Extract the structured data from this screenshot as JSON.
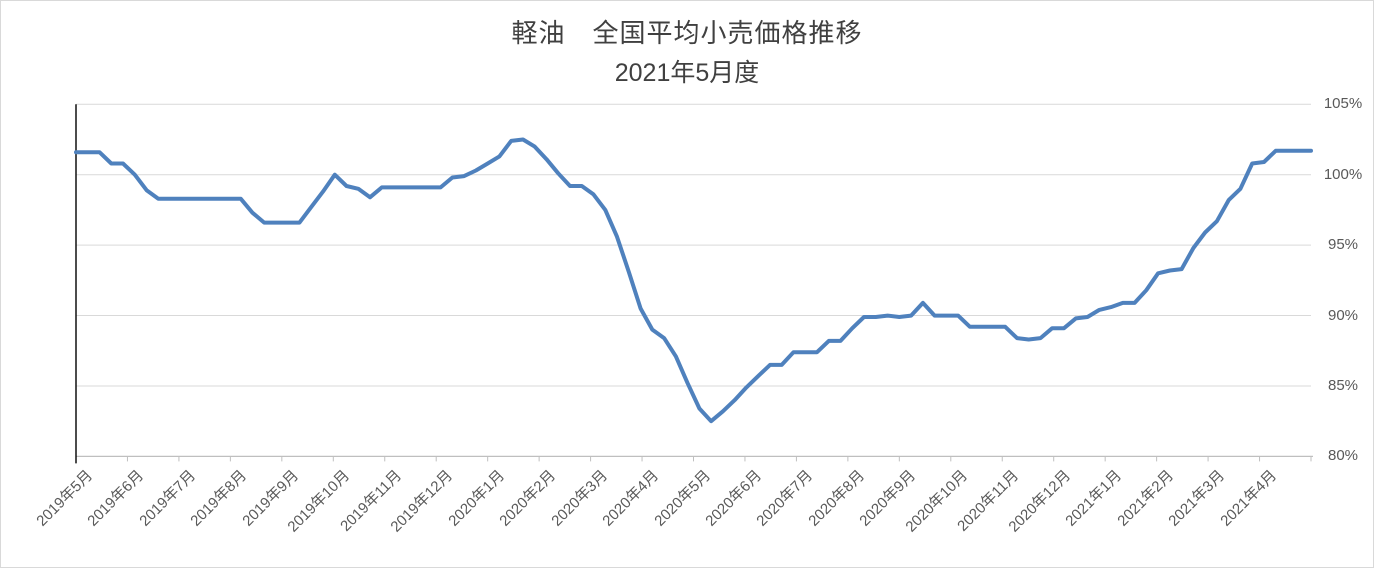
{
  "title": {
    "line1": "軽油　全国平均小売価格推移",
    "line2": "2021年5月度"
  },
  "chart_data": {
    "type": "line",
    "title": "軽油 全国平均小売価格推移",
    "subtitle": "2021年5月度",
    "frequency": "weekly",
    "legend": "none",
    "grid": "horizontal",
    "y_axis": {
      "min": 80,
      "max": 105,
      "step": 5,
      "format": "percent",
      "side": "right"
    },
    "y_tick_labels": [
      "105%",
      "100%",
      "95%",
      "90%",
      "85%",
      "80%"
    ],
    "x_tick_labels": [
      "2019年5月",
      "2019年6月",
      "2019年7月",
      "2019年8月",
      "2019年9月",
      "2019年10月",
      "2019年11月",
      "2019年12月",
      "2020年1月",
      "2020年2月",
      "2020年3月",
      "2020年4月",
      "2020年5月",
      "2020年6月",
      "2020年7月",
      "2020年8月",
      "2020年9月",
      "2020年10月",
      "2020年11月",
      "2020年12月",
      "2021年1月",
      "2021年2月",
      "2021年3月",
      "2021年4月"
    ],
    "values": [
      101.6,
      101.6,
      101.6,
      100.8,
      100.8,
      100.0,
      98.9,
      98.3,
      98.3,
      98.3,
      98.3,
      98.3,
      98.3,
      98.3,
      98.3,
      97.3,
      96.6,
      96.6,
      96.6,
      96.6,
      97.7,
      98.8,
      100.0,
      99.2,
      99.0,
      98.4,
      99.1,
      99.1,
      99.1,
      99.1,
      99.1,
      99.1,
      99.8,
      99.9,
      100.3,
      100.8,
      101.3,
      102.4,
      102.5,
      102.0,
      101.1,
      100.1,
      99.2,
      99.2,
      98.6,
      97.5,
      95.6,
      93.1,
      90.5,
      89.0,
      88.4,
      87.1,
      85.2,
      83.4,
      82.5,
      83.2,
      84.0,
      84.9,
      85.7,
      86.5,
      86.5,
      87.4,
      87.4,
      87.4,
      88.2,
      88.2,
      89.1,
      89.9,
      89.9,
      90.0,
      89.9,
      90.0,
      90.9,
      90.0,
      90.0,
      90.0,
      89.2,
      89.2,
      89.2,
      89.2,
      88.4,
      88.3,
      88.4,
      89.1,
      89.1,
      89.8,
      89.9,
      90.4,
      90.6,
      90.9,
      90.9,
      91.8,
      93.0,
      93.2,
      93.3,
      94.8,
      95.9,
      96.7,
      98.2,
      99.0,
      100.8,
      100.9,
      101.7,
      101.7,
      101.7,
      101.7
    ],
    "colors": {
      "line": "#4F81BD",
      "gridline": "#D9D9D9",
      "x_axis": "#BFBFBF",
      "y_axis": "#000000",
      "title_text": "#404040",
      "tick_text": "#595959"
    }
  }
}
